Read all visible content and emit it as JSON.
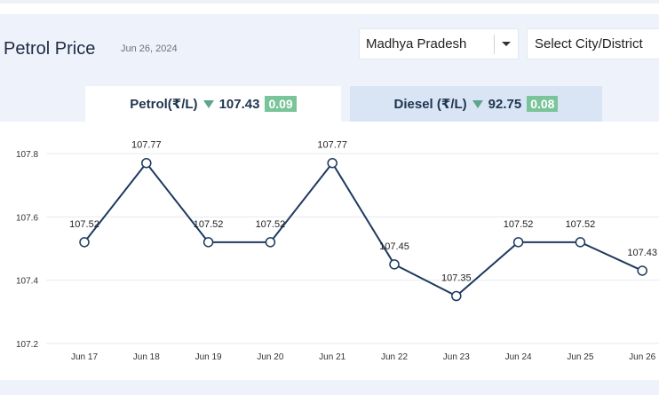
{
  "header": {
    "title": "Petrol Price",
    "date": "Jun 26, 2024"
  },
  "filters": {
    "state": "Madhya Pradesh",
    "city_placeholder": "Select City/District"
  },
  "tabs": [
    {
      "label": "Petrol(₹/L)",
      "price": "107.43",
      "change": "0.09",
      "active": true
    },
    {
      "label": "Diesel (₹/L)",
      "price": "92.75",
      "change": "0.08",
      "active": false
    }
  ],
  "colors": {
    "line": "#1e3a5f",
    "change_badge": "#7ac49a",
    "down_arrow": "#5fa58d",
    "panel_bg": "#eef2fa",
    "inactive_tab": "#d9e5f5"
  },
  "chart_data": {
    "type": "line",
    "x": [
      "Jun 17",
      "Jun 18",
      "Jun 19",
      "Jun 20",
      "Jun 21",
      "Jun 22",
      "Jun 23",
      "Jun 24",
      "Jun 25",
      "Jun 26"
    ],
    "values": [
      107.52,
      107.77,
      107.52,
      107.52,
      107.77,
      107.45,
      107.35,
      107.52,
      107.52,
      107.43
    ],
    "labels": [
      "107.52",
      "107.77",
      "107.52",
      "107.52",
      "107.77",
      "107.45",
      "107.35",
      "107.52",
      "107.52",
      "107.43"
    ],
    "yticks": [
      "107.2",
      "107.4",
      "107.6",
      "107.8"
    ],
    "ylim": [
      107.2,
      107.8
    ],
    "grid": true
  }
}
